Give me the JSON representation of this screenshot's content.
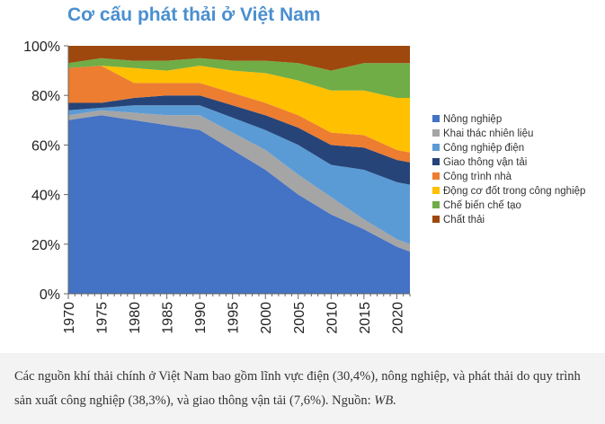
{
  "chart_data": {
    "type": "area",
    "stacked": true,
    "percent": true,
    "title": "Cơ cấu phát thải ở Việt Nam",
    "xlabel": "",
    "ylabel": "",
    "xlim": [
      1970,
      2022
    ],
    "ylim": [
      0,
      100
    ],
    "y_ticks": [
      0,
      20,
      40,
      60,
      80,
      100
    ],
    "y_tick_labels": [
      "0%",
      "20%",
      "40%",
      "60%",
      "80%",
      "100%"
    ],
    "x_ticks": [
      1970,
      1975,
      1980,
      1985,
      1990,
      1995,
      2000,
      2005,
      2010,
      2015,
      2020
    ],
    "legend_position": "right",
    "x": [
      1970,
      1975,
      1980,
      1985,
      1990,
      1995,
      2000,
      2005,
      2010,
      2015,
      2020,
      2022
    ],
    "series": [
      {
        "name": "Nông nghiệp",
        "color": "#4472c4",
        "values": [
          70,
          72,
          70,
          68,
          66,
          58,
          50,
          40,
          32,
          26,
          19,
          17
        ]
      },
      {
        "name": "Khai thác nhiên liệu",
        "color": "#a5a5a5",
        "values": [
          2,
          2,
          3,
          4,
          6,
          7,
          8,
          8,
          7,
          4,
          3,
          3
        ]
      },
      {
        "name": "Công nghiệp điện",
        "color": "#5b9bd5",
        "values": [
          2,
          1,
          3,
          4,
          4,
          6,
          8,
          12,
          13,
          20,
          23,
          24
        ]
      },
      {
        "name": "Giao thông vận tải",
        "color": "#264478",
        "values": [
          3,
          2,
          3,
          4,
          4,
          5,
          6,
          7,
          8,
          9,
          9,
          9
        ]
      },
      {
        "name": "Công trình nhà",
        "color": "#ed7d31",
        "values": [
          14,
          15,
          6,
          5,
          5,
          5,
          5,
          5,
          5,
          5,
          4,
          4
        ]
      },
      {
        "name": "Động cơ đốt trong công nghiệp",
        "color": "#ffc000",
        "values": [
          0,
          0,
          6,
          5,
          7,
          9,
          12,
          14,
          17,
          18,
          21,
          22
        ]
      },
      {
        "name": "Chế biến chế tạo",
        "color": "#70ad47",
        "values": [
          2,
          3,
          3,
          4,
          3,
          4,
          5,
          7,
          8,
          11,
          14,
          14
        ]
      },
      {
        "name": "Chất thải",
        "color": "#9e480e",
        "values": [
          7,
          5,
          6,
          6,
          5,
          6,
          6,
          7,
          10,
          7,
          7,
          7
        ]
      }
    ]
  },
  "caption": "Các nguồn khí thải chính ở Việt Nam bao gồm lĩnh vực điện (30,4%), nông nghiệp, và phát thải do quy trình sản xuất công nghiệp (38,3%), và giao thông vận tải (7,6%). Nguồn: ",
  "caption_source": "WB."
}
